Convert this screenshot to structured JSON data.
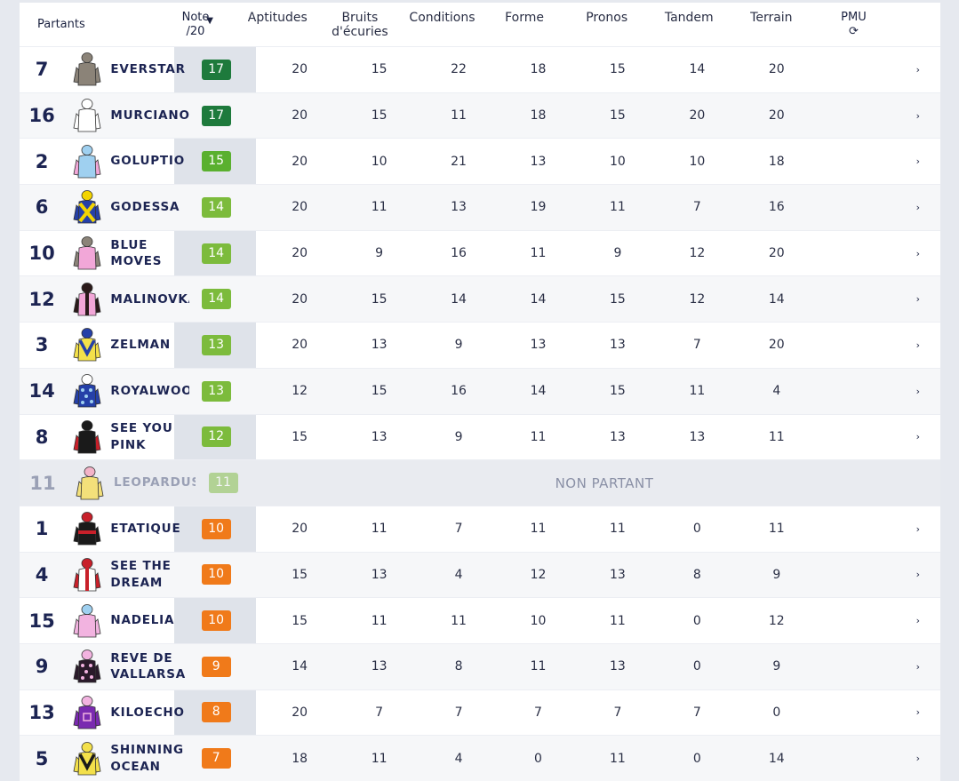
{
  "header": {
    "partants": "Partants",
    "note_line1": "Note",
    "note_line2": "/20",
    "sort_icon": "caret-down-icon",
    "columns": [
      {
        "line1": "Aptitudes",
        "line2": ""
      },
      {
        "line1": "Bruits",
        "line2": "d'écuries"
      },
      {
        "line1": "Conditions",
        "line2": ""
      },
      {
        "line1": "Forme",
        "line2": ""
      },
      {
        "line1": "Pronos",
        "line2": ""
      },
      {
        "line1": "Tandem",
        "line2": ""
      },
      {
        "line1": "Terrain",
        "line2": ""
      }
    ],
    "pmu_label": "PMU",
    "pmu_icon": "refresh-icon"
  },
  "non_partant_label": "NON PARTANT",
  "rows": [
    {
      "num": "7",
      "name": "EVERSTAR",
      "note": "17",
      "color": "#1e7a3c",
      "silk": {
        "body": "#8b8378",
        "sleeve": "#8b8378",
        "cap": "#8b8378",
        "pattern": "plain"
      },
      "scores": [
        "20",
        "15",
        "22",
        "18",
        "15",
        "14",
        "20"
      ],
      "np": false
    },
    {
      "num": "16",
      "name": "MURCIANO",
      "note": "17",
      "color": "#1e7a3c",
      "silk": {
        "body": "#ffffff",
        "sleeve": "#ffffff",
        "cap": "#ffffff",
        "pattern": "plain"
      },
      "scores": [
        "20",
        "15",
        "11",
        "18",
        "15",
        "20",
        "20"
      ],
      "np": false
    },
    {
      "num": "2",
      "name": "GOLUPTIO",
      "note": "15",
      "color": "#5ab02f",
      "silk": {
        "body": "#9fd0f0",
        "sleeve": "#f2a7d8",
        "cap": "#9fd0f0",
        "pattern": "plain"
      },
      "scores": [
        "20",
        "10",
        "21",
        "13",
        "10",
        "10",
        "18"
      ],
      "np": false
    },
    {
      "num": "6",
      "name": "GODESSA",
      "note": "14",
      "color": "#7cbb3c",
      "silk": {
        "body": "#2540a8",
        "sleeve": "#2540a8",
        "cap": "#f3d400",
        "pattern": "cross",
        "accent": "#f3d400"
      },
      "scores": [
        "20",
        "11",
        "13",
        "19",
        "11",
        "7",
        "16"
      ],
      "np": false
    },
    {
      "num": "10",
      "name": "BLUE MOVES",
      "note": "14",
      "color": "#7cbb3c",
      "silk": {
        "body": "#f2a7d8",
        "sleeve": "#8b8378",
        "cap": "#8b8378",
        "pattern": "plain"
      },
      "scores": [
        "20",
        "9",
        "16",
        "11",
        "9",
        "12",
        "20"
      ],
      "np": false
    },
    {
      "num": "12",
      "name": "MALINOVKA",
      "note": "14",
      "color": "#7cbb3c",
      "silk": {
        "body": "#f2a7d8",
        "sleeve": "#2a1a1a",
        "cap": "#2a1a1a",
        "pattern": "stripe",
        "accent": "#2a1a1a"
      },
      "scores": [
        "20",
        "15",
        "14",
        "14",
        "15",
        "12",
        "14"
      ],
      "np": false
    },
    {
      "num": "3",
      "name": "ZELMAN",
      "note": "13",
      "color": "#7cbb3c",
      "silk": {
        "body": "#f3e04a",
        "sleeve": "#f3e04a",
        "cap": "#2540a8",
        "pattern": "vee",
        "accent": "#2540a8"
      },
      "scores": [
        "20",
        "13",
        "9",
        "13",
        "13",
        "7",
        "20"
      ],
      "np": false
    },
    {
      "num": "14",
      "name": "ROYALWOOD",
      "note": "13",
      "color": "#7cbb3c",
      "silk": {
        "body": "#2540a8",
        "sleeve": "#2540a8",
        "cap": "#ffffff",
        "pattern": "dots",
        "accent": "#9fd0f0"
      },
      "scores": [
        "12",
        "15",
        "16",
        "14",
        "15",
        "11",
        "4"
      ],
      "np": false
    },
    {
      "num": "8",
      "name": "SEE YOU PINK",
      "note": "12",
      "color": "#7cbb3c",
      "silk": {
        "body": "#1a1a1a",
        "sleeve": "#c8202a",
        "cap": "#1a1a1a",
        "pattern": "plain"
      },
      "scores": [
        "15",
        "13",
        "9",
        "11",
        "13",
        "13",
        "11"
      ],
      "np": false
    },
    {
      "num": "11",
      "name": "LEOPARDUSO",
      "note": "11",
      "color": "#7cbb3c",
      "silk": {
        "body": "#f3e07a",
        "sleeve": "#f3e07a",
        "cap": "#f3b3c8",
        "pattern": "plain"
      },
      "scores": [],
      "np": true
    },
    {
      "num": "1",
      "name": "ETATIQUE",
      "note": "10",
      "color": "#f07a1a",
      "silk": {
        "body": "#1a1a1a",
        "sleeve": "#1a1a1a",
        "cap": "#c8202a",
        "pattern": "band",
        "accent": "#c8202a"
      },
      "scores": [
        "20",
        "11",
        "7",
        "11",
        "11",
        "0",
        "11"
      ],
      "np": false
    },
    {
      "num": "4",
      "name": "SEE THE DREAM",
      "note": "10",
      "color": "#f07a1a",
      "silk": {
        "body": "#ffffff",
        "sleeve": "#c8202a",
        "cap": "#c8202a",
        "pattern": "stripe",
        "accent": "#c8202a"
      },
      "scores": [
        "15",
        "13",
        "4",
        "12",
        "13",
        "8",
        "9"
      ],
      "np": false
    },
    {
      "num": "15",
      "name": "NADELIA",
      "note": "10",
      "color": "#f07a1a",
      "silk": {
        "body": "#f2b3e0",
        "sleeve": "#f2b3e0",
        "cap": "#9fd0f0",
        "pattern": "plain"
      },
      "scores": [
        "15",
        "11",
        "11",
        "10",
        "11",
        "0",
        "12"
      ],
      "np": false
    },
    {
      "num": "9",
      "name": "REVE DE VALLARSA",
      "note": "9",
      "color": "#f07a1a",
      "silk": {
        "body": "#2a1a2a",
        "sleeve": "#2a1a2a",
        "cap": "#f2b3e0",
        "pattern": "dots",
        "accent": "#f2b3e0"
      },
      "scores": [
        "14",
        "13",
        "8",
        "11",
        "13",
        "0",
        "9"
      ],
      "np": false
    },
    {
      "num": "13",
      "name": "KILOECHO",
      "note": "8",
      "color": "#f07a1a",
      "silk": {
        "body": "#7a2ab0",
        "sleeve": "#7a2ab0",
        "cap": "#f2b3e0",
        "pattern": "square",
        "accent": "#f2b3e0"
      },
      "scores": [
        "20",
        "7",
        "7",
        "7",
        "7",
        "7",
        "0"
      ],
      "np": false
    },
    {
      "num": "5",
      "name": "SHINNING OCEAN",
      "note": "7",
      "color": "#f07a1a",
      "silk": {
        "body": "#f3e04a",
        "sleeve": "#f3e04a",
        "cap": "#f3e04a",
        "pattern": "vee",
        "accent": "#1a1a1a"
      },
      "scores": [
        "18",
        "11",
        "4",
        "0",
        "11",
        "0",
        "14"
      ],
      "np": false
    }
  ]
}
